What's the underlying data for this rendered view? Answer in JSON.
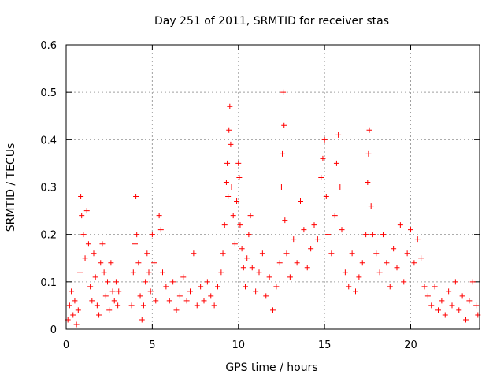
{
  "chart_data": {
    "type": "scatter",
    "title": "Day 251 of 2011, SRMTID for receiver stas",
    "xlabel": "GPS time / hours",
    "ylabel": "SRMTID / TECUs",
    "xlim": [
      0,
      24
    ],
    "ylim": [
      0,
      0.6
    ],
    "xticks": [
      "0",
      "5",
      "10",
      "15",
      "20"
    ],
    "yticks": [
      "0",
      "0.1",
      "0.2",
      "0.3",
      "0.4",
      "0.5",
      "0.6"
    ],
    "grid": true,
    "marker": "+",
    "color": "#ff0000",
    "series": [
      {
        "name": "SRMTID",
        "points": [
          [
            0.1,
            0.02
          ],
          [
            0.2,
            0.05
          ],
          [
            0.3,
            0.08
          ],
          [
            0.4,
            0.03
          ],
          [
            0.5,
            0.06
          ],
          [
            0.6,
            0.01
          ],
          [
            0.7,
            0.04
          ],
          [
            0.8,
            0.12
          ],
          [
            0.85,
            0.28
          ],
          [
            0.9,
            0.24
          ],
          [
            1.0,
            0.2
          ],
          [
            1.1,
            0.15
          ],
          [
            1.2,
            0.25
          ],
          [
            1.3,
            0.18
          ],
          [
            1.4,
            0.09
          ],
          [
            1.5,
            0.06
          ],
          [
            1.6,
            0.16
          ],
          [
            1.7,
            0.11
          ],
          [
            1.8,
            0.05
          ],
          [
            1.9,
            0.03
          ],
          [
            2.0,
            0.14
          ],
          [
            2.1,
            0.18
          ],
          [
            2.2,
            0.12
          ],
          [
            2.3,
            0.07
          ],
          [
            2.4,
            0.1
          ],
          [
            2.5,
            0.04
          ],
          [
            2.6,
            0.14
          ],
          [
            2.7,
            0.08
          ],
          [
            2.8,
            0.06
          ],
          [
            2.9,
            0.1
          ],
          [
            3.0,
            0.05
          ],
          [
            3.05,
            0.08
          ],
          [
            3.8,
            0.05
          ],
          [
            3.9,
            0.12
          ],
          [
            4.0,
            0.18
          ],
          [
            4.05,
            0.28
          ],
          [
            4.1,
            0.2
          ],
          [
            4.2,
            0.14
          ],
          [
            4.3,
            0.07
          ],
          [
            4.4,
            0.02
          ],
          [
            4.5,
            0.05
          ],
          [
            4.6,
            0.1
          ],
          [
            4.7,
            0.16
          ],
          [
            4.8,
            0.12
          ],
          [
            4.9,
            0.08
          ],
          [
            5.0,
            0.2
          ],
          [
            5.1,
            0.14
          ],
          [
            5.2,
            0.06
          ],
          [
            5.4,
            0.24
          ],
          [
            5.5,
            0.21
          ],
          [
            5.6,
            0.12
          ],
          [
            5.8,
            0.09
          ],
          [
            6.0,
            0.06
          ],
          [
            6.2,
            0.1
          ],
          [
            6.4,
            0.04
          ],
          [
            6.6,
            0.07
          ],
          [
            6.8,
            0.11
          ],
          [
            7.0,
            0.06
          ],
          [
            7.2,
            0.08
          ],
          [
            7.4,
            0.16
          ],
          [
            7.6,
            0.05
          ],
          [
            7.8,
            0.09
          ],
          [
            8.0,
            0.06
          ],
          [
            8.2,
            0.1
          ],
          [
            8.4,
            0.07
          ],
          [
            8.6,
            0.05
          ],
          [
            8.8,
            0.09
          ],
          [
            9.0,
            0.12
          ],
          [
            9.1,
            0.16
          ],
          [
            9.2,
            0.22
          ],
          [
            9.3,
            0.31
          ],
          [
            9.35,
            0.35
          ],
          [
            9.4,
            0.28
          ],
          [
            9.45,
            0.42
          ],
          [
            9.5,
            0.47
          ],
          [
            9.55,
            0.39
          ],
          [
            9.6,
            0.3
          ],
          [
            9.7,
            0.24
          ],
          [
            9.8,
            0.18
          ],
          [
            9.9,
            0.27
          ],
          [
            10.0,
            0.35
          ],
          [
            10.05,
            0.32
          ],
          [
            10.1,
            0.22
          ],
          [
            10.2,
            0.17
          ],
          [
            10.3,
            0.13
          ],
          [
            10.4,
            0.09
          ],
          [
            10.5,
            0.15
          ],
          [
            10.6,
            0.2
          ],
          [
            10.7,
            0.24
          ],
          [
            10.8,
            0.13
          ],
          [
            11.0,
            0.08
          ],
          [
            11.2,
            0.12
          ],
          [
            11.4,
            0.16
          ],
          [
            11.6,
            0.07
          ],
          [
            11.8,
            0.11
          ],
          [
            12.0,
            0.04
          ],
          [
            12.2,
            0.09
          ],
          [
            12.4,
            0.14
          ],
          [
            12.5,
            0.3
          ],
          [
            12.55,
            0.37
          ],
          [
            12.6,
            0.5
          ],
          [
            12.65,
            0.43
          ],
          [
            12.7,
            0.23
          ],
          [
            12.8,
            0.16
          ],
          [
            13.0,
            0.11
          ],
          [
            13.2,
            0.19
          ],
          [
            13.4,
            0.14
          ],
          [
            13.6,
            0.27
          ],
          [
            13.8,
            0.21
          ],
          [
            14.0,
            0.13
          ],
          [
            14.2,
            0.17
          ],
          [
            14.4,
            0.22
          ],
          [
            14.6,
            0.19
          ],
          [
            14.8,
            0.32
          ],
          [
            14.9,
            0.36
          ],
          [
            15.0,
            0.4
          ],
          [
            15.1,
            0.28
          ],
          [
            15.2,
            0.2
          ],
          [
            15.4,
            0.16
          ],
          [
            15.6,
            0.24
          ],
          [
            15.7,
            0.35
          ],
          [
            15.8,
            0.41
          ],
          [
            15.9,
            0.3
          ],
          [
            16.0,
            0.21
          ],
          [
            16.2,
            0.12
          ],
          [
            16.4,
            0.09
          ],
          [
            16.6,
            0.16
          ],
          [
            16.8,
            0.08
          ],
          [
            17.0,
            0.11
          ],
          [
            17.2,
            0.14
          ],
          [
            17.4,
            0.2
          ],
          [
            17.5,
            0.31
          ],
          [
            17.55,
            0.37
          ],
          [
            17.6,
            0.42
          ],
          [
            17.7,
            0.26
          ],
          [
            17.8,
            0.2
          ],
          [
            18.0,
            0.16
          ],
          [
            18.2,
            0.12
          ],
          [
            18.4,
            0.2
          ],
          [
            18.6,
            0.14
          ],
          [
            18.8,
            0.09
          ],
          [
            19.0,
            0.17
          ],
          [
            19.2,
            0.13
          ],
          [
            19.4,
            0.22
          ],
          [
            19.6,
            0.1
          ],
          [
            19.8,
            0.16
          ],
          [
            20.0,
            0.21
          ],
          [
            20.2,
            0.14
          ],
          [
            20.4,
            0.19
          ],
          [
            20.6,
            0.15
          ],
          [
            20.8,
            0.09
          ],
          [
            21.0,
            0.07
          ],
          [
            21.2,
            0.05
          ],
          [
            21.4,
            0.09
          ],
          [
            21.6,
            0.04
          ],
          [
            21.8,
            0.06
          ],
          [
            22.0,
            0.03
          ],
          [
            22.2,
            0.08
          ],
          [
            22.4,
            0.05
          ],
          [
            22.6,
            0.1
          ],
          [
            22.8,
            0.04
          ],
          [
            23.0,
            0.07
          ],
          [
            23.2,
            0.02
          ],
          [
            23.4,
            0.06
          ],
          [
            23.6,
            0.1
          ],
          [
            23.8,
            0.05
          ],
          [
            23.9,
            0.03
          ]
        ]
      }
    ]
  }
}
